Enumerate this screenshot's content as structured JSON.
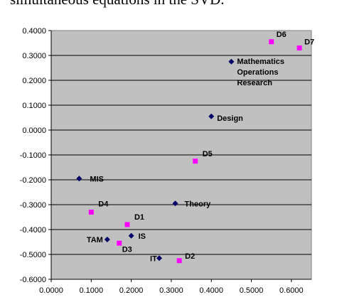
{
  "caption": "simultaneous equations in the SVD.",
  "chart_data": {
    "type": "scatter",
    "title": "",
    "xlabel": "",
    "ylabel": "",
    "xlim": [
      0.0,
      0.65
    ],
    "ylim": [
      -0.6,
      0.4
    ],
    "x_ticks": [
      "0.0000",
      "0.1000",
      "0.2000",
      "0.3000",
      "0.4000",
      "0.5000",
      "0.6000"
    ],
    "y_ticks": [
      "0.4000",
      "0.3000",
      "0.2000",
      "0.1000",
      "0.0000",
      "-0.1000",
      "-0.2000",
      "-0.3000",
      "-0.4000",
      "-0.5000",
      "-0.6000"
    ],
    "grid": true,
    "plot_background": "#c0c0c0",
    "series": [
      {
        "marker": "diamond",
        "color": "#000066",
        "points": [
          {
            "x": 0.45,
            "y": 0.275,
            "label": [
              "Mathematics",
              "Operations",
              "Research"
            ]
          },
          {
            "x": 0.4,
            "y": 0.055,
            "label": [
              "Design"
            ]
          },
          {
            "x": 0.07,
            "y": -0.195,
            "label": [
              "MIS"
            ]
          },
          {
            "x": 0.31,
            "y": -0.295,
            "label": [
              "Theory"
            ]
          },
          {
            "x": 0.2,
            "y": -0.425,
            "label": [
              "IS"
            ]
          },
          {
            "x": 0.14,
            "y": -0.44,
            "label": [
              "TAM"
            ]
          },
          {
            "x": 0.27,
            "y": -0.515,
            "label": [
              "IT"
            ]
          }
        ]
      },
      {
        "marker": "square",
        "color": "#ff00ff",
        "points": [
          {
            "x": 0.55,
            "y": 0.355,
            "label": [
              "D6"
            ]
          },
          {
            "x": 0.62,
            "y": 0.33,
            "label": [
              "D7"
            ]
          },
          {
            "x": 0.36,
            "y": -0.125,
            "label": [
              "D5"
            ]
          },
          {
            "x": 0.1,
            "y": -0.33,
            "label": [
              "D4"
            ]
          },
          {
            "x": 0.19,
            "y": -0.38,
            "label": [
              "D1"
            ]
          },
          {
            "x": 0.17,
            "y": -0.455,
            "label": [
              "D3"
            ]
          },
          {
            "x": 0.32,
            "y": -0.525,
            "label": [
              "D2"
            ]
          }
        ]
      }
    ]
  }
}
